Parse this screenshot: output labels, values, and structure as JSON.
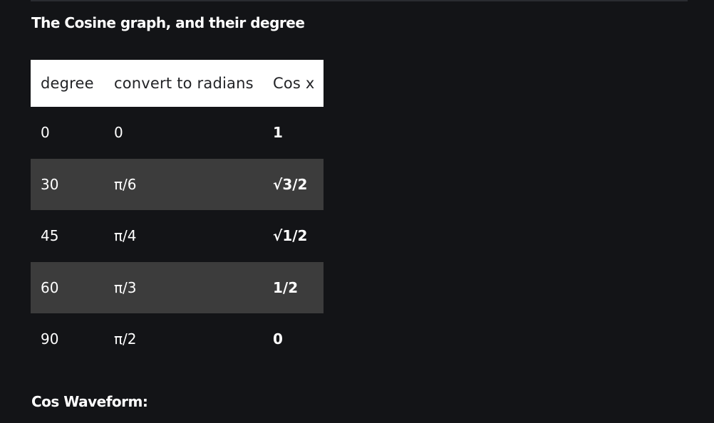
{
  "headings": {
    "table_title": "The Cosine graph, and their degree",
    "waveform_title": "Cos Waveform:"
  },
  "table": {
    "columns": [
      "degree",
      "convert to radians",
      "Cos x"
    ],
    "rows": [
      {
        "degree": "0",
        "radians": "0",
        "cos": "1"
      },
      {
        "degree": "30",
        "radians": "π/6",
        "cos": "√3/2"
      },
      {
        "degree": "45",
        "radians": "π/4",
        "cos": "√1/2"
      },
      {
        "degree": "60",
        "radians": "π/3",
        "cos": "1/2"
      },
      {
        "degree": "90",
        "radians": "π/2",
        "cos": "0"
      }
    ]
  },
  "colors": {
    "background": "#131417",
    "header_background": "#ffffff",
    "header_text": "#222326",
    "shaded_row": "#3c3c3c",
    "text": "#ffffff"
  }
}
